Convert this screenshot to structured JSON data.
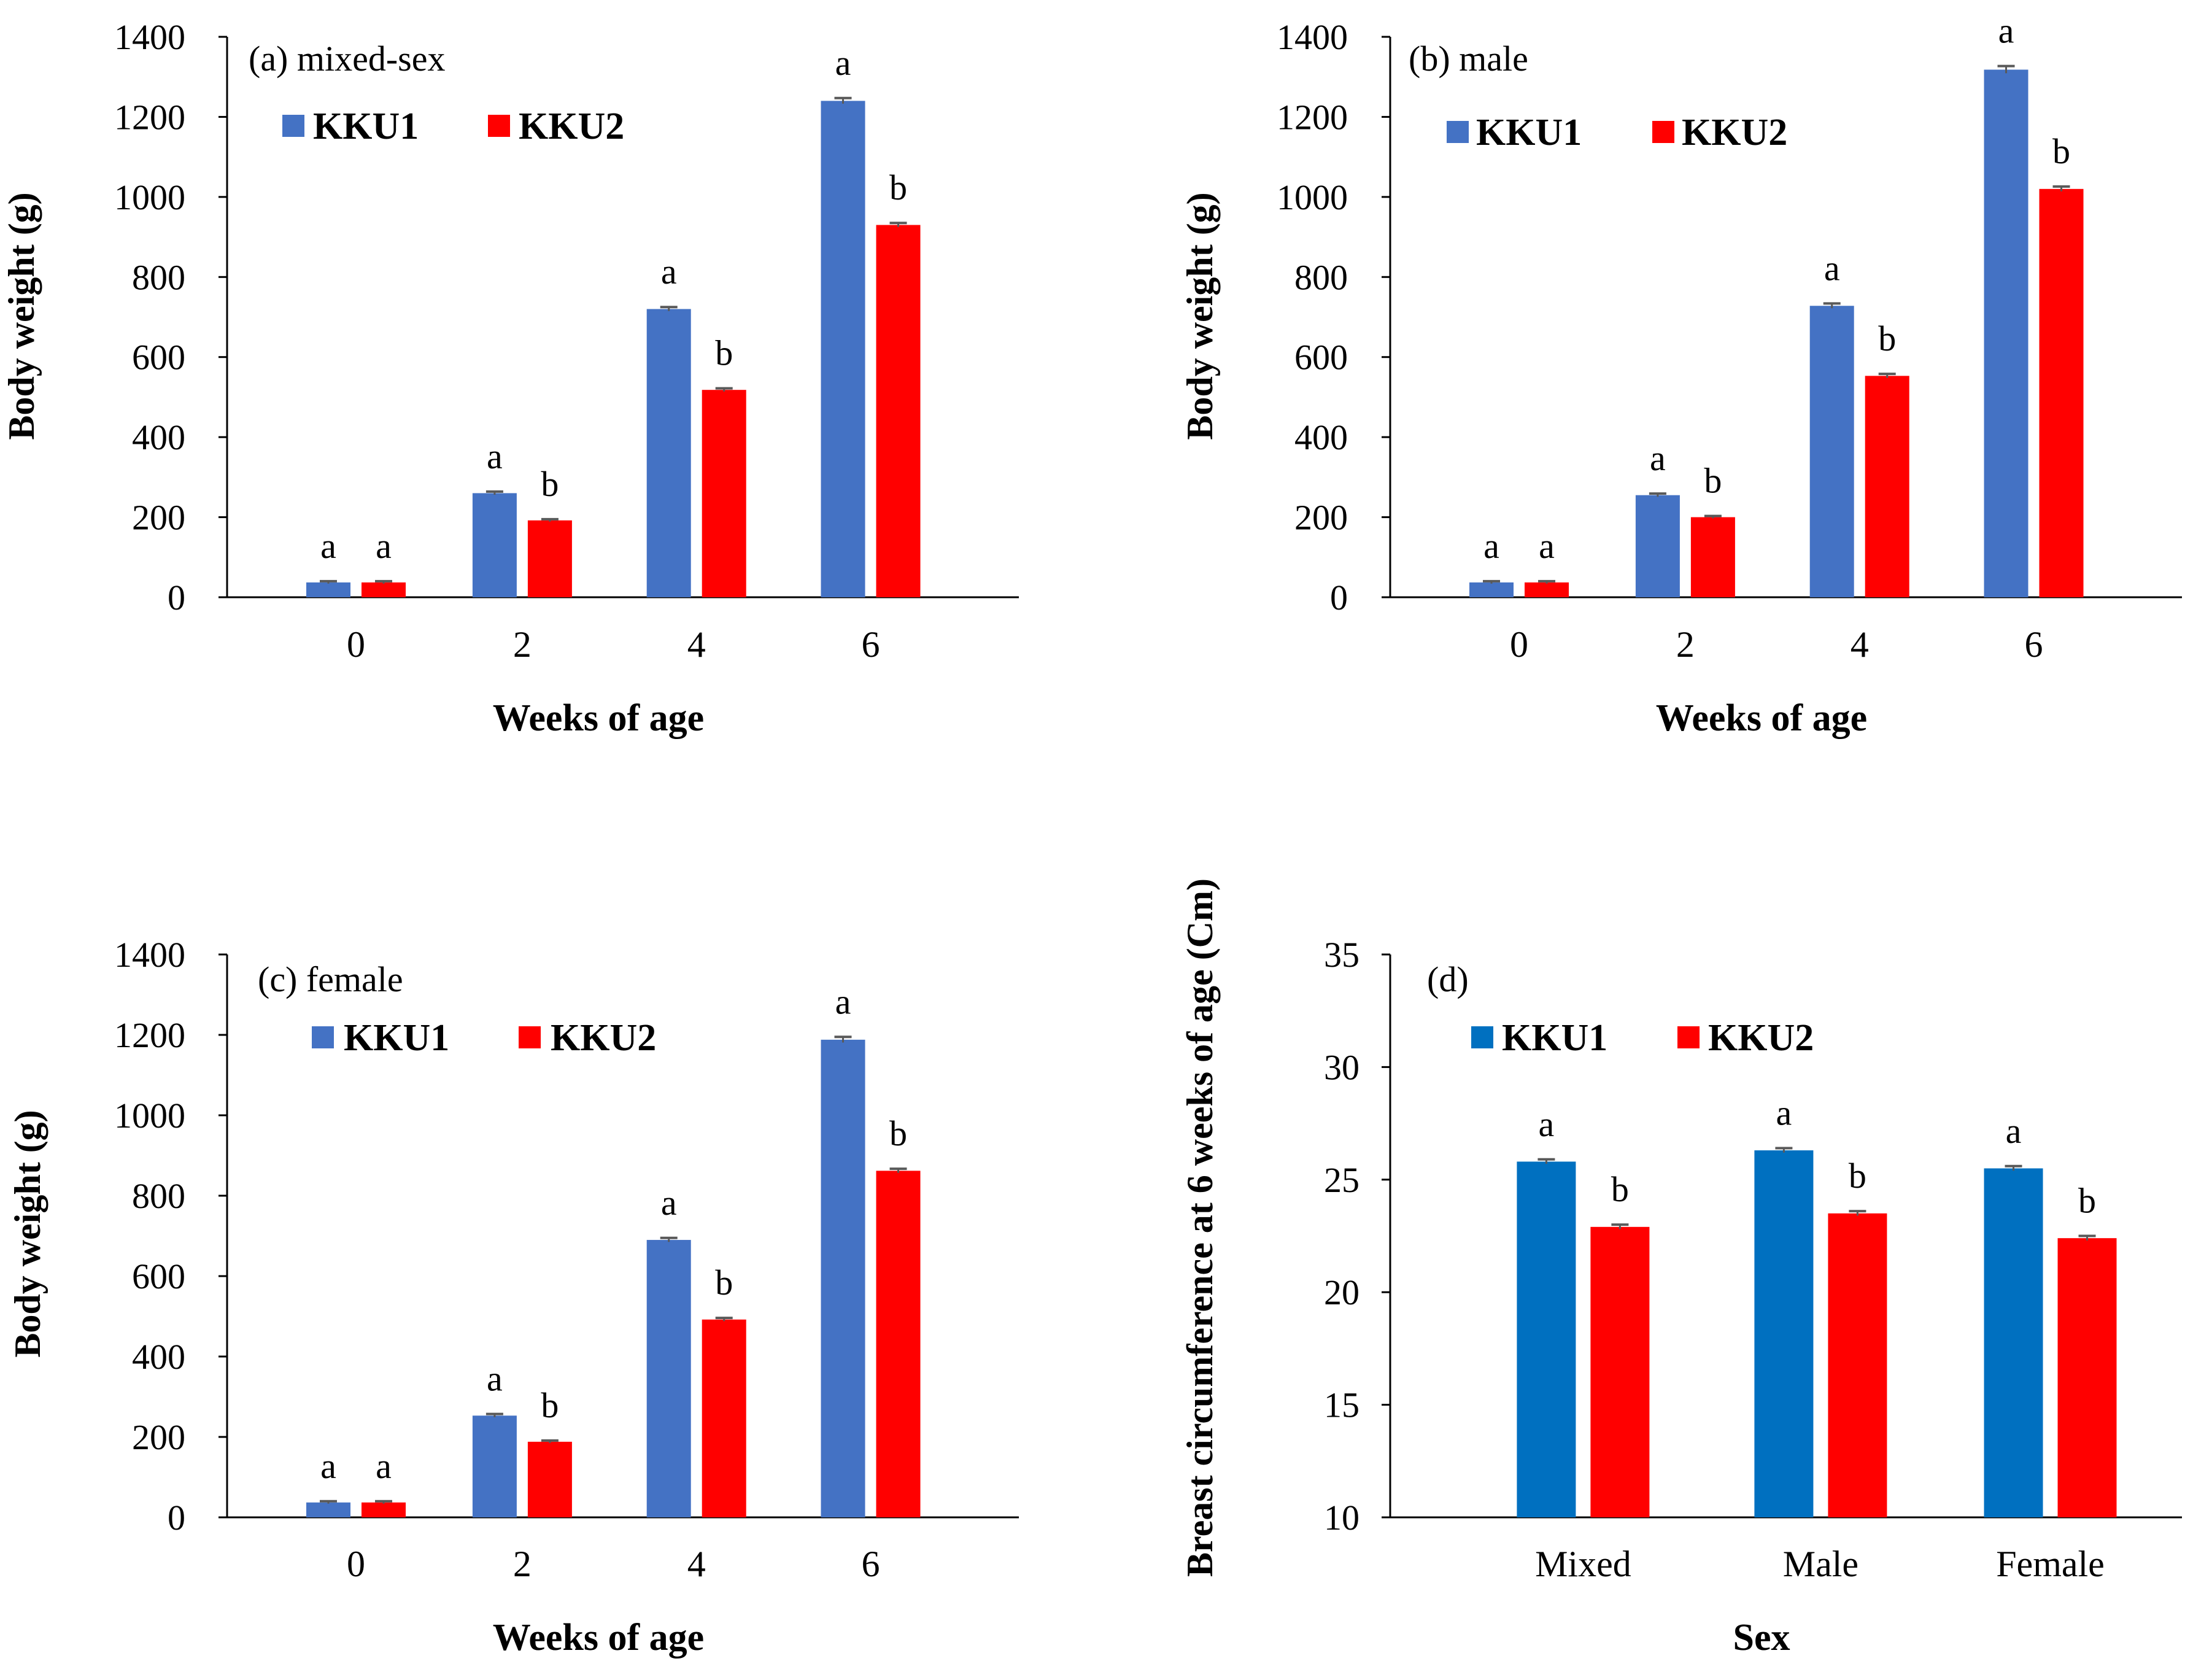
{
  "chart_data": [
    {
      "type": "bar",
      "panel": "a",
      "title": "(a) mixed-sex",
      "xlabel": "Weeks of age",
      "ylabel": "Body weight (g)",
      "categories": [
        "0",
        "2",
        "4",
        "6"
      ],
      "ylim": [
        0,
        1400
      ],
      "yticks": [
        "0",
        "200",
        "400",
        "600",
        "800",
        "1000",
        "1200",
        "1400"
      ],
      "series": [
        {
          "name": "KKU1",
          "color": "#4472C4",
          "values": [
            37,
            260,
            720,
            1240
          ],
          "errors": [
            3,
            4,
            5,
            7
          ],
          "labels": [
            "a",
            "a",
            "a",
            "a"
          ]
        },
        {
          "name": "KKU2",
          "color": "#FF0000",
          "values": [
            37,
            192,
            518,
            930
          ],
          "errors": [
            3,
            3,
            4,
            5
          ],
          "labels": [
            "a",
            "b",
            "b",
            "b"
          ]
        }
      ]
    },
    {
      "type": "bar",
      "panel": "b",
      "title": "(b) male",
      "xlabel": "Weeks of age",
      "ylabel": "Body weight (g)",
      "categories": [
        "0",
        "2",
        "4",
        "6"
      ],
      "ylim": [
        0,
        1400
      ],
      "yticks": [
        "0",
        "200",
        "400",
        "600",
        "800",
        "1000",
        "1200",
        "1400"
      ],
      "series": [
        {
          "name": "KKU1",
          "color": "#4472C4",
          "values": [
            37,
            255,
            728,
            1318
          ],
          "errors": [
            3,
            4,
            6,
            9
          ],
          "labels": [
            "a",
            "a",
            "a",
            "a"
          ]
        },
        {
          "name": "KKU2",
          "color": "#FF0000",
          "values": [
            37,
            200,
            553,
            1020
          ],
          "errors": [
            3,
            3,
            5,
            6
          ],
          "labels": [
            "a",
            "b",
            "b",
            "b"
          ]
        }
      ]
    },
    {
      "type": "bar",
      "panel": "c",
      "title": "(c) female",
      "xlabel": "Weeks of age",
      "ylabel": "Body weight (g)",
      "categories": [
        "0",
        "2",
        "4",
        "6"
      ],
      "ylim": [
        0,
        1400
      ],
      "yticks": [
        "0",
        "200",
        "400",
        "600",
        "800",
        "1000",
        "1200",
        "1400"
      ],
      "series": [
        {
          "name": "KKU1",
          "color": "#4472C4",
          "values": [
            37,
            253,
            690,
            1188
          ],
          "errors": [
            3,
            4,
            5,
            7
          ],
          "labels": [
            "a",
            "a",
            "a",
            "a"
          ]
        },
        {
          "name": "KKU2",
          "color": "#FF0000",
          "values": [
            37,
            188,
            492,
            862
          ],
          "errors": [
            3,
            3,
            4,
            5
          ],
          "labels": [
            "a",
            "b",
            "b",
            "b"
          ]
        }
      ]
    },
    {
      "type": "bar",
      "panel": "d",
      "title": "(d)",
      "xlabel": "Sex",
      "ylabel": "Breast circumference at 6 weeks of age (Cm)",
      "categories": [
        "Mixed",
        "Male",
        "Female"
      ],
      "ylim": [
        10,
        35
      ],
      "yticks": [
        "10",
        "15",
        "20",
        "25",
        "30",
        "35"
      ],
      "series": [
        {
          "name": "KKU1",
          "color": "#0070C0",
          "values": [
            25.8,
            26.3,
            25.5
          ],
          "errors": [
            0.1,
            0.1,
            0.1
          ],
          "labels": [
            "a",
            "a",
            "a"
          ]
        },
        {
          "name": "KKU2",
          "color": "#FF0000",
          "values": [
            22.9,
            23.5,
            22.4
          ],
          "errors": [
            0.1,
            0.1,
            0.1
          ],
          "labels": [
            "b",
            "b",
            "b"
          ]
        }
      ]
    }
  ]
}
